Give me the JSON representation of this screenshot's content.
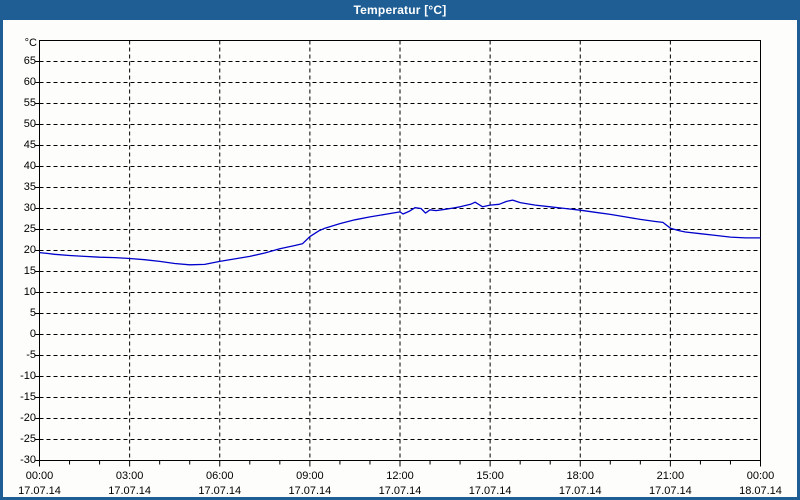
{
  "window": {
    "title": "Temperatur [°C]"
  },
  "colors": {
    "titlebar_bg": "#1E5E95",
    "titlebar_text": "#FFFFFF",
    "window_border": "#1E5E95",
    "background": "#FDFEFC",
    "plot_frame": "#000000",
    "gridline": "#000000",
    "tick_label": "#000000",
    "series_line": "#0000CC"
  },
  "chart_data": {
    "type": "line",
    "title": "Temperatur [°C]",
    "unit_label": "°C",
    "grid": true,
    "legend": "none",
    "x_axis": {
      "range_hours": [
        0,
        24
      ],
      "major_tick_step_hours": 3,
      "minor_tick_step_hours": 1,
      "tick_labels": [
        {
          "time": "00:00",
          "date": "17.07.14"
        },
        {
          "time": "03:00",
          "date": "17.07.14"
        },
        {
          "time": "06:00",
          "date": "17.07.14"
        },
        {
          "time": "09:00",
          "date": "17.07.14"
        },
        {
          "time": "12:00",
          "date": "17.07.14"
        },
        {
          "time": "15:00",
          "date": "17.07.14"
        },
        {
          "time": "18:00",
          "date": "17.07.14"
        },
        {
          "time": "21:00",
          "date": "17.07.14"
        },
        {
          "time": "00:00",
          "date": "18.07.14"
        }
      ]
    },
    "y_axis": {
      "range": [
        -30,
        70
      ],
      "tick_step": 5,
      "tick_labels": [
        65,
        60,
        55,
        50,
        45,
        40,
        35,
        30,
        25,
        20,
        15,
        10,
        5,
        0,
        -5,
        -10,
        -15,
        -20,
        -25,
        -30
      ]
    },
    "series": [
      {
        "name": "Temperatur",
        "color": "#0000CC",
        "points": [
          [
            0.0,
            19.5
          ],
          [
            0.25,
            19.3
          ],
          [
            0.5,
            19.1
          ],
          [
            1.0,
            18.8
          ],
          [
            1.5,
            18.6
          ],
          [
            2.0,
            18.4
          ],
          [
            2.5,
            18.3
          ],
          [
            3.0,
            18.1
          ],
          [
            3.5,
            17.8
          ],
          [
            4.0,
            17.4
          ],
          [
            4.5,
            16.9
          ],
          [
            5.0,
            16.6
          ],
          [
            5.5,
            16.7
          ],
          [
            6.0,
            17.4
          ],
          [
            6.5,
            18.0
          ],
          [
            7.0,
            18.6
          ],
          [
            7.5,
            19.4
          ],
          [
            8.0,
            20.4
          ],
          [
            8.5,
            21.2
          ],
          [
            8.75,
            21.6
          ],
          [
            9.0,
            23.3
          ],
          [
            9.3,
            24.7
          ],
          [
            9.5,
            25.3
          ],
          [
            10.0,
            26.4
          ],
          [
            10.5,
            27.3
          ],
          [
            11.0,
            28.0
          ],
          [
            11.5,
            28.6
          ],
          [
            12.0,
            29.2
          ],
          [
            12.1,
            28.7
          ],
          [
            12.3,
            29.3
          ],
          [
            12.5,
            30.2
          ],
          [
            12.7,
            30.0
          ],
          [
            12.85,
            28.9
          ],
          [
            13.0,
            29.7
          ],
          [
            13.2,
            29.5
          ],
          [
            13.5,
            29.8
          ],
          [
            13.75,
            30.1
          ],
          [
            14.0,
            30.4
          ],
          [
            14.35,
            31.0
          ],
          [
            14.5,
            31.5
          ],
          [
            14.75,
            30.4
          ],
          [
            15.0,
            30.8
          ],
          [
            15.3,
            31.0
          ],
          [
            15.55,
            31.7
          ],
          [
            15.75,
            32.0
          ],
          [
            16.0,
            31.4
          ],
          [
            16.5,
            30.8
          ],
          [
            17.0,
            30.4
          ],
          [
            17.5,
            30.0
          ],
          [
            18.0,
            29.6
          ],
          [
            18.5,
            29.1
          ],
          [
            19.0,
            28.6
          ],
          [
            19.5,
            28.0
          ],
          [
            20.0,
            27.4
          ],
          [
            20.5,
            26.9
          ],
          [
            20.75,
            26.7
          ],
          [
            21.0,
            25.3
          ],
          [
            21.3,
            24.7
          ],
          [
            21.5,
            24.4
          ],
          [
            22.0,
            24.0
          ],
          [
            22.5,
            23.6
          ],
          [
            23.0,
            23.2
          ],
          [
            23.5,
            23.0
          ],
          [
            24.0,
            23.0
          ]
        ]
      }
    ]
  }
}
